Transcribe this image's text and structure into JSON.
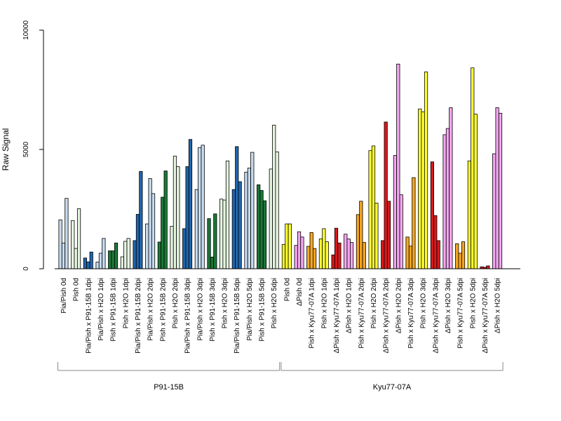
{
  "chart_data": {
    "type": "bar",
    "ylabel": "Raw Signal",
    "ylim": [
      0,
      10000
    ],
    "yticks": [
      0,
      5000,
      10000
    ],
    "categories": [
      "Pia/Pish 0d",
      "Pish 0d",
      "Pia/Pish x P91-15B 1dpi",
      "Pia/Pish x H2O 1dpi",
      "Pish x P91-15B 1dpi",
      "Pish x H2O 1dpi",
      "Pia/Pish x P91-15B 2dpi",
      "Pia/Pish x H2O 2dpi",
      "Pish x P91-15B 2dpi",
      "Pish x H2O 2dpi",
      "Pia/Pish x P91-15B 3dpi",
      "Pia/Pish x H2O 3dpi",
      "Pish x P91-15B 3dpi",
      "Pish x H2O 3dpi",
      "Pia/Pish x P91-15B 5dpi",
      "Pia/Pish x H2O 5dpi",
      "Pish x P91-15B 5dpi",
      "Pish x H2O 5dpi",
      "Pish 0d",
      "ΔPish 0d",
      "Pish x Kyu77-07A 1dpi",
      "Pish x H2O 1dpi",
      "ΔPish x Kyu77-07A 1dpi",
      "ΔPish x H2O 1dpi",
      "Pish x Kyu77-07A 2dpi",
      "Pish x H2O 2dpi",
      "ΔPish x Kyu77-07A 2dpi",
      "ΔPish x H2O 2dpi",
      "Pish x Kyu77-07A 3dpi",
      "Pish x H2O 3dpi",
      "ΔPish x Kyu77-07A 3dpi",
      "ΔPish x H2O 3dpi",
      "Pish x Kyu77-07A 5dpi",
      "Pish x H2O 5dpi",
      "ΔPish x Kyu77-07A 5dpi",
      "ΔPish x H2O 5dpi"
    ],
    "colors": [
      "#c6dbef",
      "#e5f5e0",
      "#2166ac",
      "#c6dbef",
      "#1b7837",
      "#e5f5e0",
      "#2166ac",
      "#c6dbef",
      "#1b7837",
      "#e5f5e0",
      "#2166ac",
      "#c6dbef",
      "#1b7837",
      "#e5f5e0",
      "#2166ac",
      "#c6dbef",
      "#1b7837",
      "#e5f5e0",
      "#ffff33",
      "#f4a6f0",
      "#f5a623",
      "#ffff33",
      "#d7191c",
      "#f4a6f0",
      "#f5a623",
      "#ffff33",
      "#d7191c",
      "#f4a6f0",
      "#f5a623",
      "#ffff33",
      "#d7191c",
      "#f4a6f0",
      "#f5a623",
      "#ffff33",
      "#d7191c",
      "#f4a6f0"
    ],
    "values": [
      [
        2050,
        1080,
        2950
      ],
      [
        2020,
        850,
        2520
      ],
      [
        450,
        290,
        700
      ],
      [
        280,
        650,
        1270
      ],
      [
        750,
        750,
        1080
      ],
      [
        500,
        1150,
        1270
      ],
      [
        1180,
        2280,
        4080
      ],
      [
        1880,
        3780,
        3150
      ],
      [
        1120,
        3000,
        4100
      ],
      [
        1780,
        4720,
        4280
      ],
      [
        1680,
        4280,
        5420
      ],
      [
        3320,
        5080,
        5180
      ],
      [
        2100,
        490,
        2300
      ],
      [
        2920,
        2880,
        4520
      ],
      [
        3320,
        5120,
        3650
      ],
      [
        4050,
        4220,
        4880
      ],
      [
        3520,
        3280,
        2850
      ],
      [
        4180,
        6020,
        4900
      ],
      [
        1020,
        1880,
        1880
      ],
      [
        980,
        1550,
        1330
      ],
      [
        940,
        1520,
        850
      ],
      [
        1250,
        1680,
        1130
      ],
      [
        580,
        1700,
        1080
      ],
      [
        1450,
        1250,
        1100
      ],
      [
        2270,
        2830,
        1100
      ],
      [
        4950,
        5150,
        2750
      ],
      [
        1180,
        6150,
        2830
      ],
      [
        4750,
        8580,
        3100
      ],
      [
        1330,
        950,
        3820
      ],
      [
        6700,
        6580,
        8250
      ],
      [
        4480,
        2230,
        1180
      ],
      [
        5620,
        5880,
        6750
      ],
      [
        1050,
        650,
        1130
      ],
      [
        4520,
        8420,
        6480
      ],
      [
        80,
        60,
        120
      ],
      [
        4820,
        6750,
        6520
      ]
    ],
    "groups": [
      {
        "label": "P91-15B",
        "from": 0,
        "to": 17
      },
      {
        "label": "Kyu77-07A",
        "from": 18,
        "to": 35
      }
    ],
    "legend": "none",
    "grid": false
  }
}
